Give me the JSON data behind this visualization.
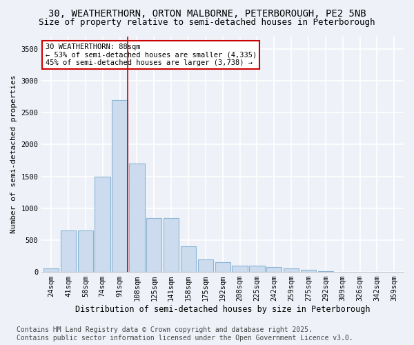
{
  "title_line1": "30, WEATHERTHORN, ORTON MALBORNE, PETERBOROUGH, PE2 5NB",
  "title_line2": "Size of property relative to semi-detached houses in Peterborough",
  "xlabel": "Distribution of semi-detached houses by size in Peterborough",
  "ylabel": "Number of semi-detached properties",
  "categories": [
    "24sqm",
    "41sqm",
    "58sqm",
    "74sqm",
    "91sqm",
    "108sqm",
    "125sqm",
    "141sqm",
    "158sqm",
    "175sqm",
    "192sqm",
    "208sqm",
    "225sqm",
    "242sqm",
    "259sqm",
    "275sqm",
    "292sqm",
    "309sqm",
    "326sqm",
    "342sqm",
    "359sqm"
  ],
  "values": [
    50,
    650,
    650,
    1500,
    2700,
    1700,
    850,
    850,
    400,
    200,
    150,
    100,
    100,
    75,
    50,
    30,
    10,
    5,
    2,
    1,
    1
  ],
  "bar_color": "#ccdcee",
  "bar_edge_color": "#8ab4d4",
  "vline_index": 4,
  "vline_color": "#cc0000",
  "annotation_text": "30 WEATHERTHORN: 88sqm\n← 53% of semi-detached houses are smaller (4,335)\n45% of semi-detached houses are larger (3,738) →",
  "ylim": [
    0,
    3700
  ],
  "yticks": [
    0,
    500,
    1000,
    1500,
    2000,
    2500,
    3000,
    3500
  ],
  "background_color": "#eef2f8",
  "plot_bg_color": "#eef2f8",
  "grid_color": "#ffffff",
  "footer_line1": "Contains HM Land Registry data © Crown copyright and database right 2025.",
  "footer_line2": "Contains public sector information licensed under the Open Government Licence v3.0.",
  "title_fontsize": 10,
  "subtitle_fontsize": 9,
  "annotation_fontsize": 7.5,
  "footer_fontsize": 7,
  "ylabel_fontsize": 8,
  "xlabel_fontsize": 8.5,
  "tick_fontsize": 7.5
}
